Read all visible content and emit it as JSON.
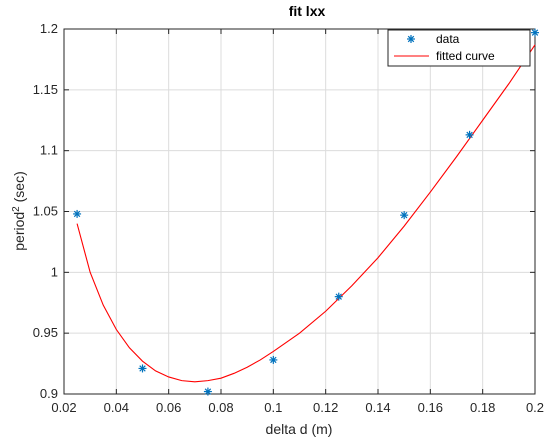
{
  "chart_data": {
    "type": "scatter",
    "title": "fit lxx",
    "xlabel": "delta d (m)",
    "ylabel_base": "period",
    "ylabel_sup": "2",
    "ylabel_rest": " (sec)",
    "xlim": [
      0.02,
      0.2
    ],
    "ylim": [
      0.9,
      1.2
    ],
    "xticks": [
      "0.02",
      "0.04",
      "0.06",
      "0.08",
      "0.1",
      "0.12",
      "0.14",
      "0.16",
      "0.18",
      "0.2"
    ],
    "yticks": [
      "0.9",
      "0.95",
      "1",
      "1.05",
      "1.1",
      "1.15",
      "1.2"
    ],
    "grid": true,
    "legend_position": "top-right",
    "series": [
      {
        "name": "data",
        "kind": "marker",
        "marker": "asterisk",
        "color": "#0072BD",
        "x": [
          0.025,
          0.05,
          0.075,
          0.1,
          0.125,
          0.15,
          0.175,
          0.2
        ],
        "y": [
          1.048,
          0.921,
          0.902,
          0.928,
          0.98,
          1.047,
          1.113,
          1.197
        ]
      },
      {
        "name": "fitted curve",
        "kind": "line",
        "color": "#FF0000",
        "x": [
          0.025,
          0.03,
          0.035,
          0.04,
          0.045,
          0.05,
          0.055,
          0.06,
          0.065,
          0.07,
          0.075,
          0.08,
          0.085,
          0.09,
          0.095,
          0.1,
          0.11,
          0.12,
          0.13,
          0.14,
          0.15,
          0.16,
          0.17,
          0.18,
          0.19,
          0.2
        ],
        "y": [
          1.04,
          1.0,
          0.973,
          0.953,
          0.938,
          0.927,
          0.919,
          0.914,
          0.911,
          0.91,
          0.911,
          0.913,
          0.917,
          0.922,
          0.928,
          0.935,
          0.95,
          0.968,
          0.989,
          1.012,
          1.038,
          1.066,
          1.095,
          1.125,
          1.155,
          1.187
        ]
      }
    ]
  }
}
